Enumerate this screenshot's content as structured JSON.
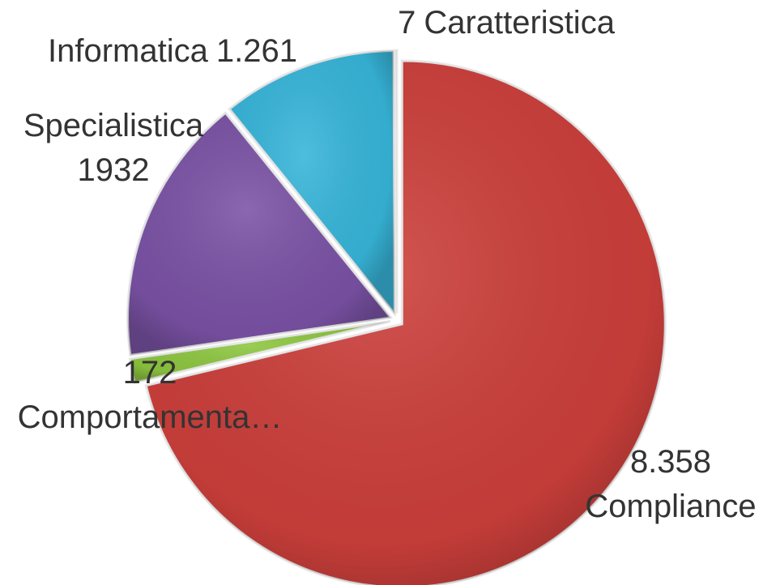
{
  "chart_data": {
    "type": "pie",
    "categories": [
      "Compliance",
      "Comportamenta…",
      "Specialistica",
      "Informatica",
      "Caratteristica"
    ],
    "values": [
      8358,
      172,
      1932,
      1261,
      7
    ],
    "value_labels": [
      "8.358",
      "172",
      "1932",
      "1.261",
      "7"
    ],
    "colors": [
      "#cc3f3b",
      "#8dc63f",
      "#7a52a5",
      "#37b5d9",
      "#e8892a"
    ]
  }
}
